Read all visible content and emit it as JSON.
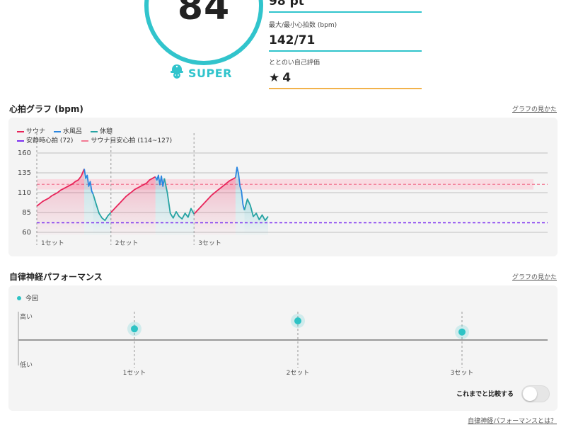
{
  "score": {
    "value": "84",
    "rank": "SUPER"
  },
  "stats": {
    "points": "98 pt",
    "hr_label": "最大/最小心拍数 (bpm)",
    "hr_value": "142/71",
    "eval_label": "ととのい自己評価",
    "eval_value": "4"
  },
  "heart_rate": {
    "title": "心拍グラフ (bpm)",
    "help": "グラフの見かた",
    "legend": {
      "sauna": "サウナ",
      "cold_bath": "水風呂",
      "rest": "休憩",
      "resting_hr": "安静時心拍 (72)",
      "sauna_target": "サウナ目安心拍 (114~127)"
    },
    "colors": {
      "sauna": "#e8245a",
      "cold_bath": "#2a86e0",
      "rest": "#26a3a3",
      "resting": "#7b2ff0",
      "target": "#f27a94"
    }
  },
  "chart_data": [
    {
      "type": "line",
      "title": "心拍グラフ (bpm)",
      "ylabel": "",
      "ylim": [
        60,
        160
      ],
      "yticks": [
        60,
        85,
        110,
        135,
        160
      ],
      "set_labels": [
        "1セット",
        "2セット",
        "3セット"
      ],
      "resting_hr": 72,
      "sauna_target_range": [
        114,
        127
      ],
      "grid": true,
      "legend_position": "top-left",
      "series": [
        {
          "name": "サウナ",
          "segments": [
            {
              "set": 1,
              "t": [
                0,
                2,
                4,
                6,
                8,
                10,
                12,
                14,
                16,
                18,
                20,
                22,
                24,
                26,
                28,
                30,
                32
              ],
              "bpm": [
                93,
                96,
                99,
                101,
                103,
                106,
                108,
                110,
                113,
                115,
                117,
                119,
                121,
                124,
                126,
                131,
                140
              ]
            },
            {
              "set": 2,
              "t": [
                50,
                52,
                54,
                56,
                58,
                60,
                62,
                64,
                66,
                68,
                70,
                72,
                74,
                76,
                78,
                80
              ],
              "bpm": [
                85,
                89,
                93,
                97,
                101,
                105,
                108,
                111,
                114,
                116,
                118,
                120,
                122,
                126,
                128,
                130
              ]
            },
            {
              "set": 3,
              "t": [
                106,
                108,
                110,
                112,
                114,
                116,
                118,
                120,
                122,
                124,
                126,
                128,
                130,
                132,
                134
              ],
              "bpm": [
                83,
                87,
                91,
                95,
                99,
                103,
                107,
                110,
                113,
                116,
                119,
                122,
                125,
                127,
                129
              ]
            }
          ]
        },
        {
          "name": "水風呂",
          "segments": [
            {
              "set": 1,
              "t": [
                32,
                33,
                34,
                35,
                36,
                37,
                38
              ],
              "bpm": [
                140,
                128,
                132,
                118,
                124,
                112,
                108
              ]
            },
            {
              "set": 2,
              "t": [
                80,
                81,
                82,
                83,
                84,
                85,
                86
              ],
              "bpm": [
                130,
                126,
                132,
                120,
                131,
                118,
                128
              ]
            },
            {
              "set": 3,
              "t": [
                134,
                135,
                136,
                137,
                138,
                139,
                140
              ],
              "bpm": [
                129,
                142,
                134,
                118,
                112,
                95,
                88
              ]
            }
          ]
        },
        {
          "name": "休憩",
          "segments": [
            {
              "set": 1,
              "t": [
                38,
                40,
                42,
                44,
                46,
                48,
                50
              ],
              "bpm": [
                108,
                96,
                84,
                78,
                75,
                81,
                85
              ]
            },
            {
              "set": 2,
              "t": [
                86,
                88,
                90,
                92,
                94,
                96,
                98,
                100,
                102,
                104,
                106
              ],
              "bpm": [
                128,
                110,
                84,
                78,
                86,
                80,
                77,
                84,
                79,
                90,
                83
              ]
            },
            {
              "set": 3,
              "t": [
                140,
                142,
                144,
                146,
                148,
                150,
                152,
                154,
                156
              ],
              "bpm": [
                88,
                102,
                94,
                80,
                84,
                76,
                82,
                75,
                80
              ]
            }
          ]
        }
      ]
    },
    {
      "type": "scatter",
      "title": "自律神経パフォーマンス",
      "ylabel_top": "高い",
      "ylabel_bottom": "低い",
      "ylim": [
        -1,
        1
      ],
      "categories": [
        "1セット",
        "2セット",
        "3セット"
      ],
      "series": [
        {
          "name": "今回",
          "values": [
            0.35,
            0.6,
            0.25
          ]
        }
      ]
    }
  ],
  "ans": {
    "title": "自律神経パフォーマンス",
    "help": "グラフの見かた",
    "legend_now": "今回",
    "y_high": "高い",
    "y_low": "低い",
    "compare_label": "これまでと比較する",
    "compare_on": false,
    "what_link": "自律神経パフォーマンスとは？",
    "dot_color": "#2ec3c5"
  }
}
